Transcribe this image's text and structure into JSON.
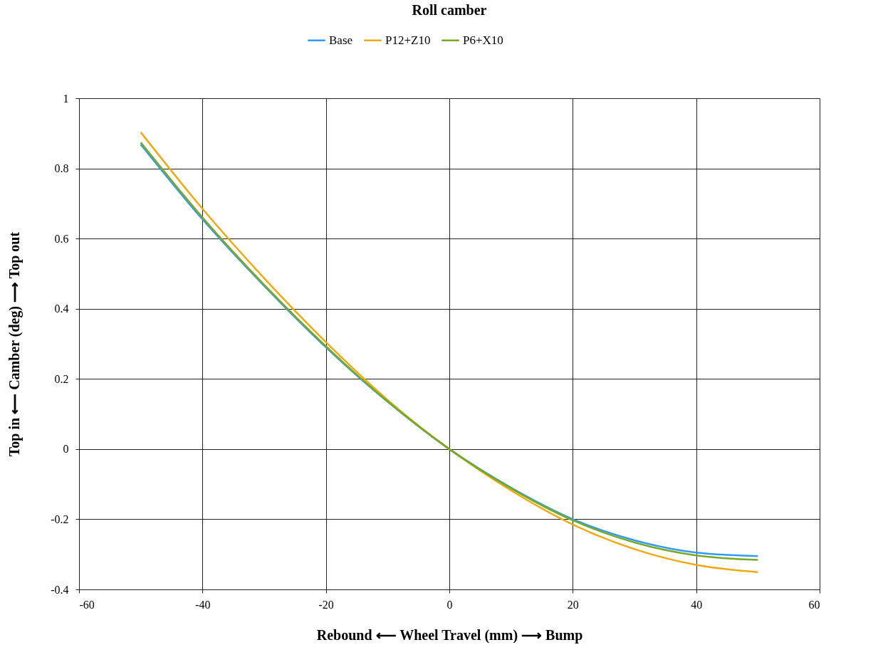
{
  "chart_data": {
    "type": "line",
    "title": "Roll camber",
    "xlabel": "Rebound ⟵ Wheel Travel (mm) ⟶ Bump",
    "ylabel": "Top in ⟵ Camber (deg) ⟶ Top out",
    "x": [
      -50,
      -40,
      -30,
      -20,
      -10,
      0,
      10,
      20,
      30,
      40,
      50
    ],
    "series": [
      {
        "name": "Base",
        "color": "#3399ff",
        "values": [
          0.868,
          0.655,
          0.465,
          0.29,
          0.135,
          0,
          -0.11,
          -0.2,
          -0.26,
          -0.295,
          -0.305
        ]
      },
      {
        "name": "P12+Z10",
        "color": "#eeaa11",
        "values": [
          0.903,
          0.685,
          0.487,
          0.305,
          0.14,
          0,
          -0.118,
          -0.215,
          -0.285,
          -0.33,
          -0.351
        ]
      },
      {
        "name": "P6+X10",
        "color": "#77aa22",
        "values": [
          0.874,
          0.66,
          0.468,
          0.293,
          0.136,
          0,
          -0.112,
          -0.203,
          -0.266,
          -0.303,
          -0.316
        ]
      }
    ],
    "xlim": [
      -60,
      60
    ],
    "xticks": [
      -60,
      -40,
      -20,
      0,
      20,
      40,
      60
    ],
    "ylim": [
      -0.4,
      1
    ],
    "yticks": [
      -0.4,
      -0.2,
      0,
      0.2,
      0.4,
      0.6,
      0.8,
      1
    ],
    "grid": true,
    "legend": "top",
    "line_style": "solid",
    "marker": "none"
  }
}
